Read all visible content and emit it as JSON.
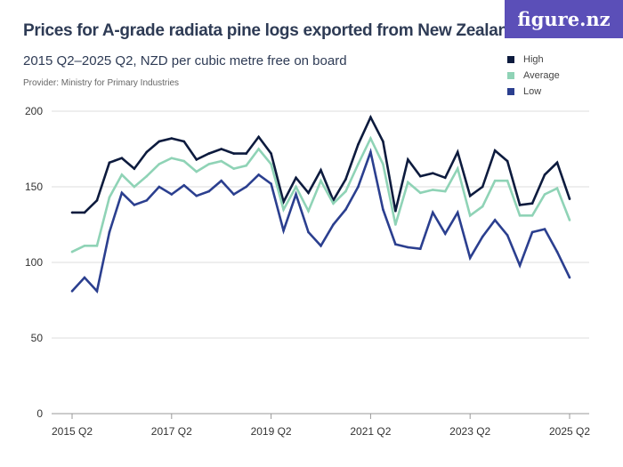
{
  "logo": "figure.nz",
  "chart_data": {
    "type": "line",
    "title": "Prices for A-grade radiata pine logs exported from New Zealand",
    "subtitle": "2015 Q2–2025 Q2, NZD per cubic metre free on board",
    "provider": "Provider: Ministry for Primary Industries",
    "x_start": "2015 Q2",
    "x_end": "2025 Q2",
    "x_ticks": [
      "2015 Q2",
      "2017 Q2",
      "2019 Q2",
      "2021 Q2",
      "2023 Q2",
      "2025 Q2"
    ],
    "y_ticks": [
      0,
      50,
      100,
      150,
      200
    ],
    "ylim": [
      0,
      200
    ],
    "grid": true,
    "legend_placement": "top-right",
    "series": [
      {
        "name": "High",
        "color": "#0d1b3e",
        "values": [
          133,
          133,
          141,
          166,
          169,
          162,
          173,
          180,
          182,
          180,
          168,
          172,
          175,
          172,
          172,
          183,
          172,
          140,
          156,
          146,
          161,
          141,
          155,
          178,
          196,
          180,
          134,
          168,
          157,
          159,
          156,
          173,
          144,
          150,
          174,
          167,
          138,
          139,
          158,
          166,
          142
        ]
      },
      {
        "name": "Average",
        "color": "#8fd3b6",
        "values": [
          107,
          111,
          111,
          143,
          158,
          150,
          157,
          165,
          169,
          167,
          160,
          165,
          167,
          162,
          164,
          175,
          165,
          135,
          150,
          134,
          154,
          139,
          147,
          165,
          182,
          165,
          125,
          153,
          146,
          148,
          147,
          162,
          131,
          137,
          154,
          154,
          131,
          131,
          145,
          149,
          128
        ]
      },
      {
        "name": "Low",
        "color": "#2b3f8f",
        "values": [
          81,
          90,
          81,
          120,
          146,
          138,
          141,
          150,
          145,
          151,
          144,
          147,
          154,
          145,
          150,
          158,
          152,
          121,
          145,
          120,
          111,
          125,
          135,
          150,
          173,
          135,
          112,
          110,
          109,
          133,
          119,
          133,
          103,
          117,
          128,
          118,
          98,
          120,
          122,
          107,
          90
        ]
      }
    ]
  }
}
